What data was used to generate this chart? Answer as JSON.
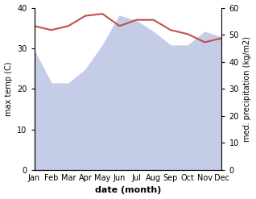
{
  "months": [
    "Jan",
    "Feb",
    "Mar",
    "Apr",
    "May",
    "Jun",
    "Jul",
    "Aug",
    "Sep",
    "Oct",
    "Nov",
    "Dec"
  ],
  "x": [
    1,
    2,
    3,
    4,
    5,
    6,
    7,
    8,
    9,
    10,
    11,
    12
  ],
  "temperature": [
    35.5,
    34.5,
    35.5,
    38.0,
    38.5,
    35.5,
    37.0,
    37.0,
    34.5,
    33.5,
    31.5,
    32.5
  ],
  "precipitation": [
    44,
    32,
    32,
    37,
    46,
    57,
    55,
    51,
    46,
    46,
    51,
    49
  ],
  "temp_color": "#c0504d",
  "precip_color_fill": "#c5cce8",
  "ylabel_left": "max temp (C)",
  "ylabel_right": "med. precipitation (kg/m2)",
  "xlabel": "date (month)",
  "ylim_left": [
    0,
    40
  ],
  "ylim_right": [
    0,
    60
  ],
  "bg_color": "#ffffff"
}
